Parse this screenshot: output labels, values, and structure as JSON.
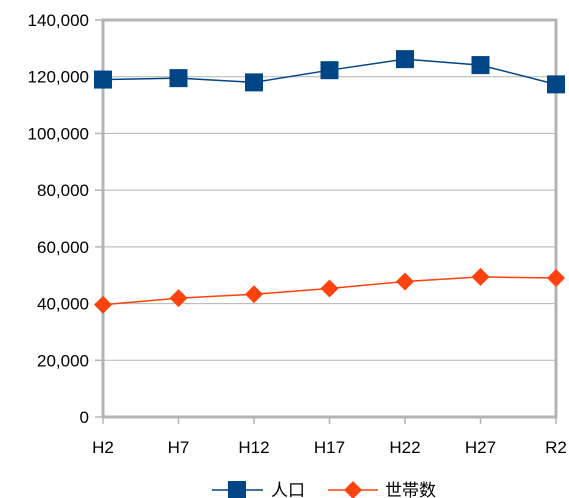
{
  "chart_data": {
    "type": "line",
    "categories": [
      "H2",
      "H7",
      "H12",
      "H17",
      "H22",
      "H27",
      "R2"
    ],
    "ylim": [
      0,
      140000
    ],
    "y_ticks": [
      0,
      20000,
      40000,
      60000,
      80000,
      100000,
      120000,
      140000
    ],
    "y_tick_labels": [
      "0",
      "20,000",
      "40,000",
      "60,000",
      "80,000",
      "100,000",
      "120,000",
      "140,000"
    ],
    "grid": true,
    "legend_position": "bottom",
    "series": [
      {
        "name": "人口",
        "marker": "square",
        "color": "#004586",
        "values": [
          119000,
          119500,
          118000,
          122300,
          126200,
          124100,
          117300
        ]
      },
      {
        "name": "世帯数",
        "marker": "diamond",
        "color": "#ff420e",
        "values": [
          39600,
          41900,
          43300,
          45300,
          47800,
          49400,
          49000
        ]
      }
    ]
  }
}
